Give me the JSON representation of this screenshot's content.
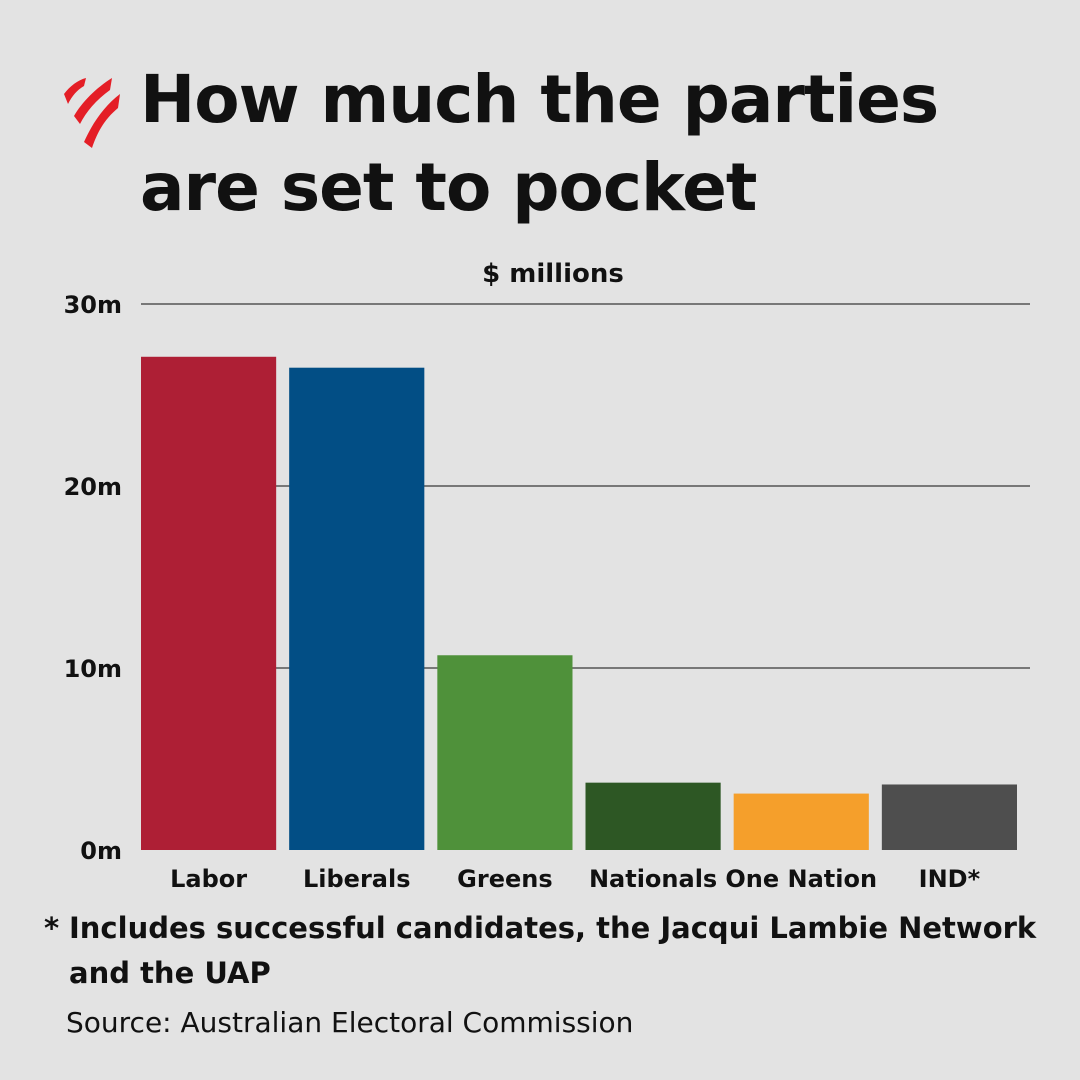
{
  "header": {
    "logo_icon": "sbs-logo-icon",
    "title": "How much the parties are set to pocket"
  },
  "chart_data": {
    "type": "bar",
    "ylabel": "$ millions",
    "ylim": [
      0,
      30
    ],
    "yticks": [
      0,
      10,
      20,
      30
    ],
    "ytick_labels": [
      "0m",
      "10m",
      "20m",
      "30m"
    ],
    "grid": true,
    "categories": [
      "Labor",
      "Liberals",
      "Greens",
      "Nationals",
      "One Nation",
      "IND*"
    ],
    "values": [
      27.1,
      26.5,
      10.7,
      3.7,
      3.1,
      3.6
    ],
    "colors": [
      "#ae1f35",
      "#024e85",
      "#4f913a",
      "#2d5724",
      "#f59f2b",
      "#4e4e4e"
    ]
  },
  "footnote": {
    "marker": "*",
    "text": "Includes successful candidates, the Jacqui Lambie Network and the UAP"
  },
  "source": "Source: Australian Electoral Commission"
}
